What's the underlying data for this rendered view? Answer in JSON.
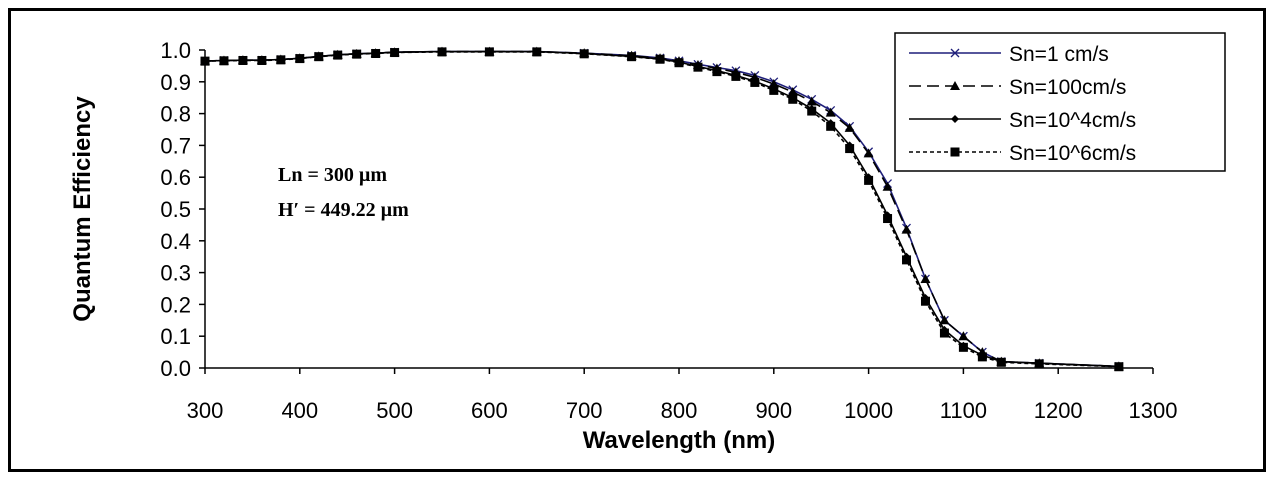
{
  "chart_data": {
    "type": "line",
    "title": "",
    "xlabel": "Wavelength (nm)",
    "ylabel": "Quantum Efficiency",
    "xlim": [
      300,
      1300
    ],
    "ylim": [
      0,
      1
    ],
    "xticks": [
      "300",
      "400",
      "500",
      "600",
      "700",
      "800",
      "900",
      "1000",
      "1100",
      "1200",
      "1300"
    ],
    "yticks": [
      "0.0",
      "0.1",
      "0.2",
      "0.3",
      "0.4",
      "0.5",
      "0.6",
      "0.7",
      "0.8",
      "0.9",
      "1.0"
    ],
    "grid": false,
    "legend_position": "top-right",
    "annotations": [
      "Ln = 300 µm",
      "H′ = 449.22 µm"
    ],
    "series": [
      {
        "name": "Sn=1 cm/s",
        "color": "#1f1f7a",
        "dash": "solid",
        "marker": "x",
        "x": [
          300,
          320,
          340,
          360,
          380,
          400,
          420,
          440,
          460,
          480,
          500,
          550,
          600,
          650,
          700,
          750,
          780,
          800,
          820,
          840,
          860,
          880,
          900,
          920,
          940,
          960,
          980,
          1000,
          1020,
          1040,
          1060,
          1080,
          1100,
          1120,
          1140,
          1180,
          1264
        ],
        "y": [
          0.965,
          0.967,
          0.968,
          0.968,
          0.97,
          0.974,
          0.98,
          0.985,
          0.988,
          0.99,
          0.993,
          0.995,
          0.995,
          0.995,
          0.99,
          0.983,
          0.975,
          0.966,
          0.955,
          0.945,
          0.935,
          0.92,
          0.9,
          0.875,
          0.845,
          0.81,
          0.76,
          0.68,
          0.58,
          0.44,
          0.28,
          0.15,
          0.1,
          0.05,
          0.02,
          0.015,
          0.005
        ]
      },
      {
        "name": "Sn=100cm/s",
        "color": "#000000",
        "dash": "long",
        "marker": "triangle",
        "x": [
          300,
          320,
          340,
          360,
          380,
          400,
          420,
          440,
          460,
          480,
          500,
          550,
          600,
          650,
          700,
          750,
          780,
          800,
          820,
          840,
          860,
          880,
          900,
          920,
          940,
          960,
          980,
          1000,
          1020,
          1040,
          1060,
          1080,
          1100,
          1120,
          1140,
          1180,
          1264
        ],
        "y": [
          0.965,
          0.967,
          0.968,
          0.968,
          0.97,
          0.974,
          0.98,
          0.985,
          0.988,
          0.99,
          0.993,
          0.995,
          0.995,
          0.995,
          0.99,
          0.982,
          0.974,
          0.965,
          0.953,
          0.942,
          0.93,
          0.914,
          0.893,
          0.868,
          0.838,
          0.803,
          0.755,
          0.675,
          0.57,
          0.435,
          0.28,
          0.15,
          0.1,
          0.05,
          0.02,
          0.015,
          0.005
        ]
      },
      {
        "name": "Sn=10^4cm/s",
        "color": "#000000",
        "dash": "solid",
        "marker": "diamond",
        "x": [
          300,
          320,
          340,
          360,
          380,
          400,
          420,
          440,
          460,
          480,
          500,
          550,
          600,
          650,
          700,
          750,
          780,
          800,
          820,
          840,
          860,
          880,
          900,
          920,
          940,
          960,
          980,
          1000,
          1020,
          1040,
          1060,
          1080,
          1100,
          1120,
          1140,
          1180,
          1264
        ],
        "y": [
          0.965,
          0.967,
          0.968,
          0.968,
          0.97,
          0.974,
          0.98,
          0.985,
          0.988,
          0.99,
          0.993,
          0.995,
          0.995,
          0.995,
          0.989,
          0.98,
          0.972,
          0.962,
          0.948,
          0.935,
          0.92,
          0.902,
          0.878,
          0.85,
          0.815,
          0.77,
          0.7,
          0.6,
          0.48,
          0.35,
          0.22,
          0.12,
          0.07,
          0.04,
          0.02,
          0.015,
          0.005
        ]
      },
      {
        "name": "Sn=10^6cm/s",
        "color": "#000000",
        "dash": "short",
        "marker": "square",
        "x": [
          300,
          320,
          340,
          360,
          380,
          400,
          420,
          440,
          460,
          480,
          500,
          550,
          600,
          650,
          700,
          750,
          780,
          800,
          820,
          840,
          860,
          880,
          900,
          920,
          940,
          960,
          980,
          1000,
          1020,
          1040,
          1060,
          1080,
          1100,
          1120,
          1140,
          1180,
          1264
        ],
        "y": [
          0.965,
          0.966,
          0.967,
          0.967,
          0.969,
          0.973,
          0.979,
          0.984,
          0.987,
          0.989,
          0.992,
          0.994,
          0.994,
          0.994,
          0.988,
          0.979,
          0.971,
          0.96,
          0.946,
          0.932,
          0.917,
          0.898,
          0.873,
          0.845,
          0.808,
          0.76,
          0.69,
          0.59,
          0.47,
          0.34,
          0.21,
          0.11,
          0.065,
          0.035,
          0.018,
          0.013,
          0.004
        ]
      }
    ]
  }
}
